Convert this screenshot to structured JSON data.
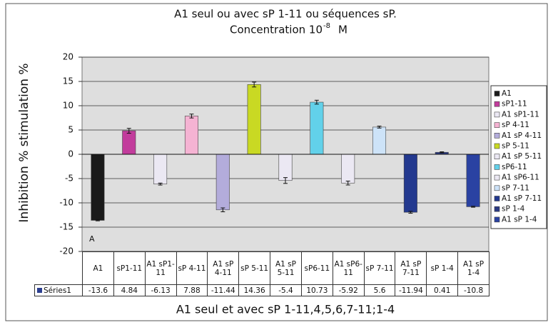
{
  "chart_data": {
    "type": "bar",
    "title": "A1 seul ou avec sP 1-11 ou séquences sP.",
    "subtitle": "Concentration 10",
    "subtitle_exponent": "-8",
    "subtitle_unit": "M",
    "y_label": "Inhibition %  stimulation  %",
    "x_label": "A1 seul et avec sP 1-11,4,5,6,7-11;1-4",
    "annotation": "A",
    "categories": [
      "A1",
      "sP1-11",
      "A1 sP1-11",
      "sP 4-11",
      "A1 sP 4-11",
      "sP 5-11",
      "A1 sP 5-11",
      "sP6-11",
      "A1 sP6-11",
      "sP 7-11",
      "A1 sP 7-11",
      "sP 1-4",
      "A1 sP 1-4"
    ],
    "series": [
      {
        "name": "Séries1",
        "color": "#2c3f8f",
        "values": [
          -13.6,
          4.84,
          -6.13,
          7.88,
          -11.44,
          14.36,
          -5.4,
          10.73,
          -5.92,
          5.6,
          -11.94,
          0.41,
          -10.8
        ],
        "errors": [
          0.1,
          0.5,
          0.2,
          0.4,
          0.4,
          0.5,
          0.6,
          0.4,
          0.4,
          0.2,
          0.2,
          0.1,
          0.1
        ],
        "point_colors": [
          "#1a1a1a",
          "#c23c9c",
          "#ebe8f3",
          "#f5b3d3",
          "#b3acdb",
          "#c9d923",
          "#ebe8f3",
          "#62d1ea",
          "#ebe8f3",
          "#cde3f8",
          "#23398f",
          "#2b3a82",
          "#2a42a2"
        ]
      }
    ],
    "ylim": [
      -20,
      20
    ],
    "yticks": [
      -20,
      -15,
      -10,
      -5,
      0,
      5,
      10,
      15,
      20
    ],
    "grid": true,
    "legend": "right",
    "data_table": true
  }
}
